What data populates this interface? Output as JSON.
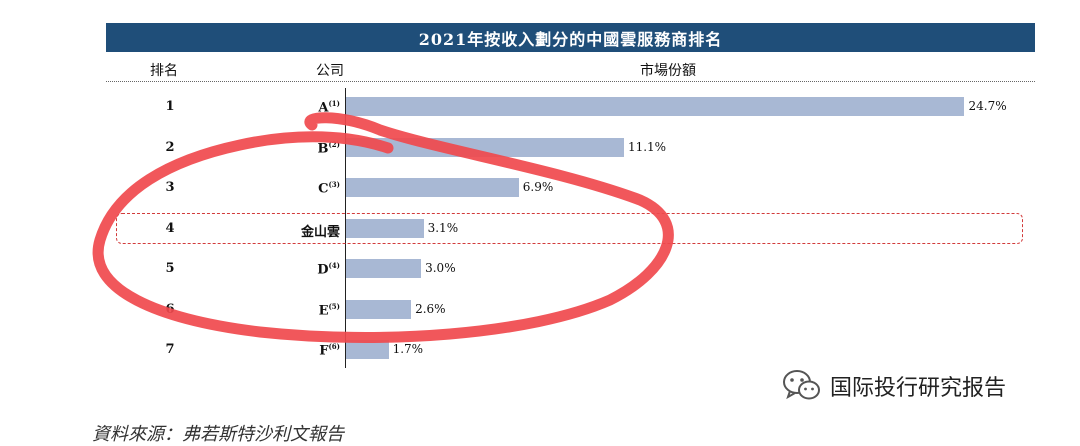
{
  "chart_data": {
    "type": "bar",
    "orientation": "horizontal",
    "title": "2021年按收入劃分的中國雲服務商排名",
    "columns": [
      "排名",
      "公司",
      "市場份額"
    ],
    "ranks": [
      "1",
      "2",
      "3",
      "4",
      "5",
      "6",
      "7"
    ],
    "categories": [
      "A",
      "B",
      "C",
      "金山雲",
      "D",
      "E",
      "F"
    ],
    "notes": [
      "(1)",
      "(2)",
      "(3)",
      "",
      "(4)",
      "(5)",
      "(6)"
    ],
    "values": [
      24.7,
      11.1,
      6.9,
      3.1,
      3.0,
      2.6,
      1.7
    ],
    "value_labels": [
      "24.7%",
      "11.1%",
      "6.9%",
      "3.1%",
      "3.0%",
      "2.6%",
      "1.7%"
    ],
    "xlim": [
      0,
      25
    ],
    "highlighted_category": "金山雲",
    "bar_color": "#a8b8d4",
    "title_bg_color": "#1f4e79",
    "highlight_color": "#d23b3b"
  },
  "watermark": {
    "icon": "wechat-icon",
    "text": "国际投行研究报告"
  },
  "source_text": "資料來源：弗若斯特沙利文報告"
}
